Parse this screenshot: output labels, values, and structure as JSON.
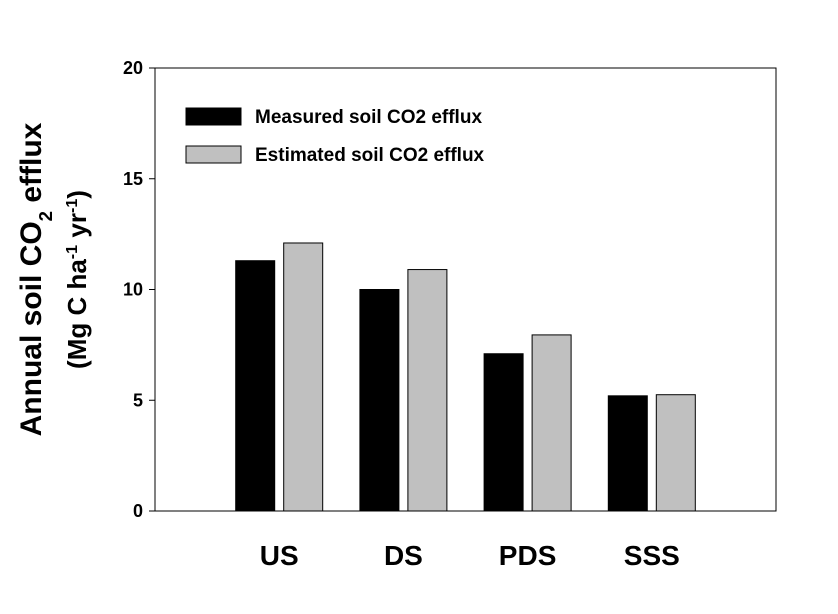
{
  "chart_data": {
    "type": "bar",
    "y_label": [
      [
        "Annual soil CO",
        "2",
        " efflux"
      ],
      [
        "(Mg C ha",
        "-1",
        " yr",
        "-1",
        ")"
      ]
    ],
    "categories": [
      "US",
      "DS",
      "PDS",
      "SSS"
    ],
    "series": [
      {
        "name": "Measured soil CO2 efflux",
        "color": "#000000",
        "values": [
          11.3,
          10.0,
          7.1,
          5.2
        ]
      },
      {
        "name": "Estimated soil CO2 efflux",
        "color": "#c0c0c0",
        "values": [
          12.1,
          10.9,
          7.95,
          5.25
        ]
      }
    ],
    "ylim": [
      0,
      20
    ],
    "yticks": [
      0,
      5,
      10,
      15,
      20
    ],
    "grid": false,
    "legend": "upper left"
  }
}
